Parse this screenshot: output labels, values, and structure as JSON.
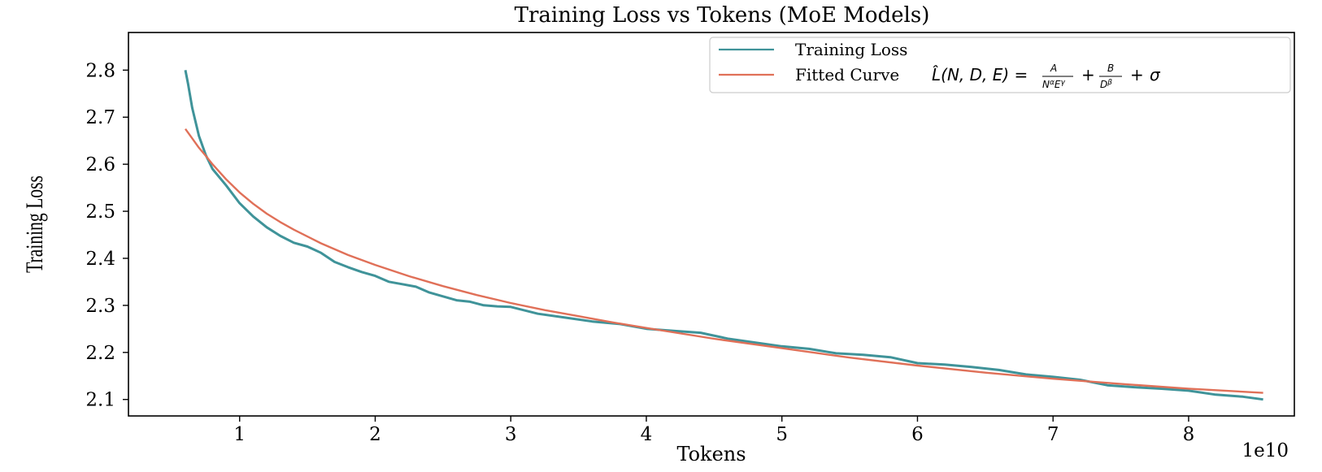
{
  "colors": {
    "training_loss": "#3f9399",
    "fitted_curve": "#e07058",
    "frame": "#000000",
    "legend_border": "#cccccc"
  },
  "chart_data": {
    "type": "line",
    "title": "Training Loss vs Tokens (MoE Models)",
    "xlabel": "Tokens",
    "ylabel": "Training Loss",
    "x_scale_label": "1e10",
    "xlim": [
      0.18,
      8.78
    ],
    "ylim": [
      2.065,
      2.88
    ],
    "x_ticks": [
      1,
      2,
      3,
      4,
      5,
      6,
      7,
      8
    ],
    "x_tick_labels": [
      "1",
      "2",
      "3",
      "4",
      "5",
      "6",
      "7",
      "8"
    ],
    "y_ticks": [
      2.1,
      2.2,
      2.3,
      2.4,
      2.5,
      2.6,
      2.7,
      2.8
    ],
    "y_tick_labels": [
      "2.1",
      "2.2",
      "2.3",
      "2.4",
      "2.5",
      "2.6",
      "2.7",
      "2.8"
    ],
    "grid": false,
    "legend_position": "top-right",
    "series": [
      {
        "name": "Training Loss",
        "x": [
          0.6,
          0.62,
          0.65,
          0.7,
          0.75,
          0.8,
          0.9,
          1.0,
          1.1,
          1.2,
          1.3,
          1.4,
          1.5,
          1.6,
          1.7,
          1.8,
          1.9,
          2.0,
          2.1,
          2.2,
          2.3,
          2.4,
          2.5,
          2.6,
          2.7,
          2.8,
          2.9,
          3.0,
          3.2,
          3.4,
          3.6,
          3.8,
          4.0,
          4.2,
          4.4,
          4.6,
          4.8,
          5.0,
          5.2,
          5.4,
          5.6,
          5.8,
          6.0,
          6.2,
          6.4,
          6.6,
          6.8,
          7.0,
          7.2,
          7.4,
          7.6,
          7.8,
          8.0,
          8.2,
          8.4,
          8.55
        ],
        "y": [
          2.8,
          2.77,
          2.72,
          2.66,
          2.62,
          2.59,
          2.555,
          2.52,
          2.49,
          2.465,
          2.445,
          2.435,
          2.425,
          2.41,
          2.395,
          2.382,
          2.37,
          2.36,
          2.352,
          2.345,
          2.338,
          2.33,
          2.32,
          2.31,
          2.305,
          2.302,
          2.298,
          2.295,
          2.285,
          2.275,
          2.265,
          2.258,
          2.252,
          2.246,
          2.24,
          2.232,
          2.222,
          2.212,
          2.205,
          2.2,
          2.195,
          2.188,
          2.18,
          2.175,
          2.168,
          2.16,
          2.155,
          2.148,
          2.14,
          2.133,
          2.127,
          2.122,
          2.116,
          2.112,
          2.106,
          2.1
        ]
      },
      {
        "name": "Fitted Curve",
        "x": [
          0.6,
          0.65,
          0.7,
          0.75,
          0.8,
          0.9,
          1.0,
          1.1,
          1.2,
          1.3,
          1.4,
          1.6,
          1.8,
          2.0,
          2.25,
          2.5,
          2.75,
          3.0,
          3.25,
          3.5,
          3.75,
          4.0,
          4.5,
          5.0,
          5.5,
          6.0,
          6.5,
          7.0,
          7.5,
          8.0,
          8.55
        ],
        "y": [
          2.675,
          2.655,
          2.635,
          2.618,
          2.6,
          2.568,
          2.54,
          2.516,
          2.495,
          2.477,
          2.461,
          2.432,
          2.407,
          2.386,
          2.362,
          2.341,
          2.322,
          2.305,
          2.29,
          2.277,
          2.264,
          2.252,
          2.229,
          2.209,
          2.189,
          2.172,
          2.157,
          2.144,
          2.133,
          2.123,
          2.114
        ]
      }
    ],
    "legend": [
      {
        "label": "Training Loss",
        "series": 0
      },
      {
        "label": "Fitted Curve",
        "series": 1
      }
    ]
  }
}
